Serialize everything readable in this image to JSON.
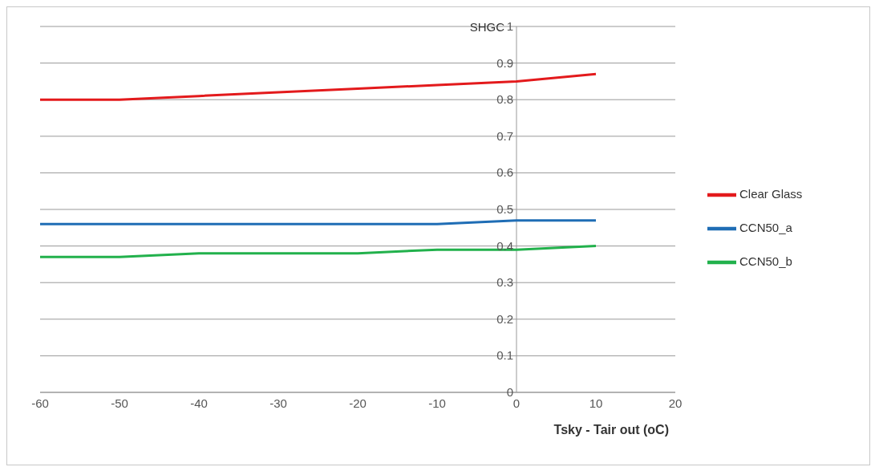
{
  "chart_data": {
    "type": "line",
    "ylabel": "SHGC",
    "xlabel": "Tsky - Tair out  (oC)",
    "x": [
      -60,
      -50,
      -40,
      -30,
      -20,
      -10,
      0,
      10
    ],
    "series": [
      {
        "name": "Clear Glass",
        "color": "#e31a1c",
        "values": [
          0.8,
          0.8,
          0.81,
          0.82,
          0.83,
          0.84,
          0.85,
          0.87
        ]
      },
      {
        "name": "CCN50_a",
        "color": "#1f6db5",
        "values": [
          0.46,
          0.46,
          0.46,
          0.46,
          0.46,
          0.46,
          0.47,
          0.47
        ]
      },
      {
        "name": "CCN50_b",
        "color": "#22b14c",
        "values": [
          0.37,
          0.37,
          0.38,
          0.38,
          0.38,
          0.39,
          0.39,
          0.4
        ]
      }
    ],
    "xlim": [
      -60,
      20
    ],
    "xticks": [
      -60,
      -50,
      -40,
      -30,
      -20,
      -10,
      0,
      10,
      20
    ],
    "ylim": [
      0,
      1
    ],
    "yticks": [
      0,
      0.1,
      0.2,
      0.3,
      0.4,
      0.5,
      0.6,
      0.7,
      0.8,
      0.9,
      1
    ],
    "grid": "y",
    "legend": "right",
    "marker": "none",
    "line_style": "solid"
  }
}
